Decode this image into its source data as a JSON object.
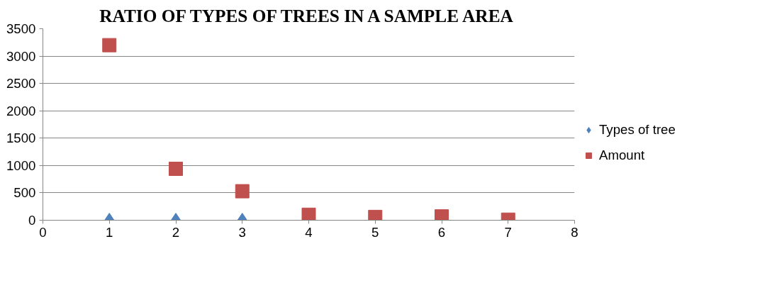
{
  "chart_data": {
    "type": "scatter",
    "title": "RATIO OF TYPES OF TREES IN A SAMPLE AREA",
    "x": [
      1,
      2,
      3,
      4,
      5,
      6,
      7
    ],
    "series": [
      {
        "name": "Types of tree",
        "color": "#4f81bd",
        "marker": "diamond",
        "values": [
          0,
          0,
          0,
          null,
          null,
          null,
          null
        ]
      },
      {
        "name": "Amount",
        "color": "#c0504d",
        "marker": "square",
        "values": [
          3200,
          940,
          530,
          100,
          60,
          70,
          10
        ]
      }
    ],
    "xlim": [
      0,
      8
    ],
    "xticks": [
      0,
      1,
      2,
      3,
      4,
      5,
      6,
      7,
      8
    ],
    "ylim": [
      0,
      3500
    ],
    "yticks": [
      0,
      500,
      1000,
      1500,
      2000,
      2500,
      3000,
      3500
    ],
    "grid": "y",
    "legend": "right"
  }
}
